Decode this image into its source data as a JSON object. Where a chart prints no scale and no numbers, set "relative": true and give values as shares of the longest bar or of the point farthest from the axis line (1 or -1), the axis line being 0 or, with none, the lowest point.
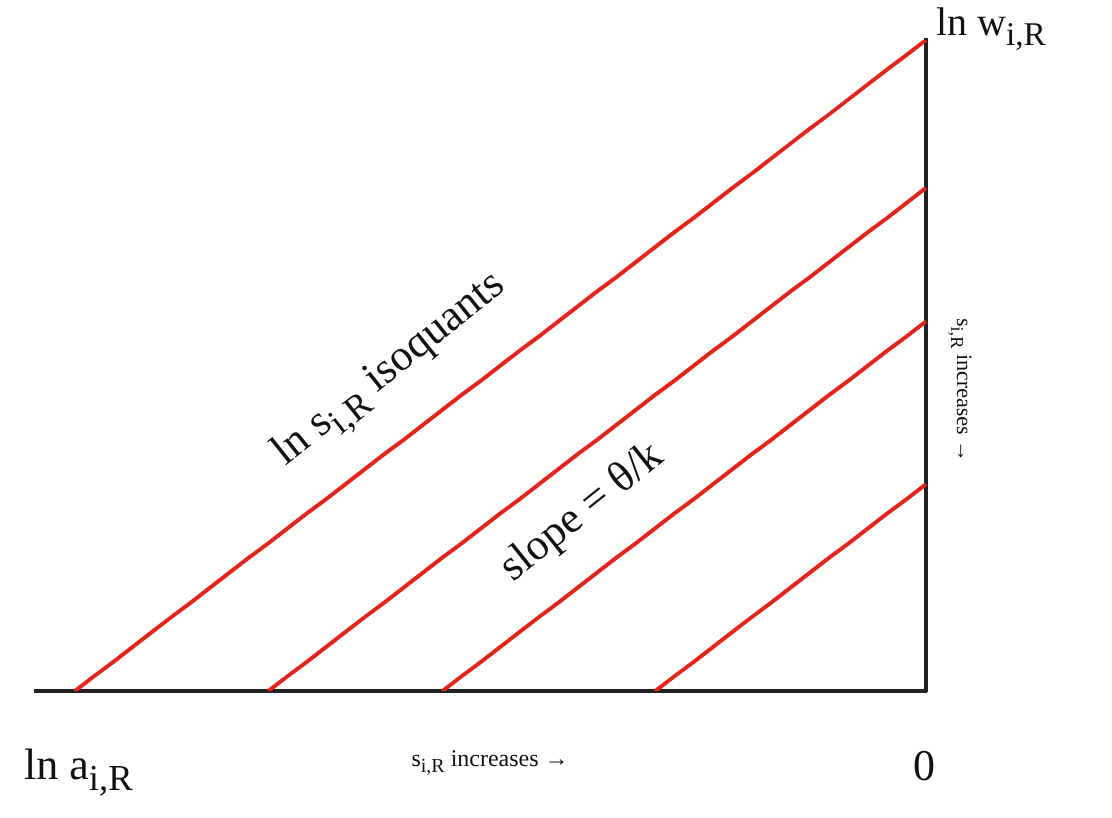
{
  "chart_data": {
    "type": "line",
    "relative": true,
    "grid": false,
    "legend": false,
    "marker": "none",
    "line_style": "solid",
    "categories": [
      null,
      null,
      null,
      null,
      null,
      null,
      null,
      null,
      null,
      null,
      null,
      null,
      null,
      null,
      null,
      null,
      null,
      null,
      null,
      null,
      null,
      null,
      null,
      null,
      null,
      null,
      null,
      null,
      null,
      null,
      null,
      null,
      null,
      null,
      null,
      null,
      null,
      null,
      null,
      null,
      null,
      null,
      null,
      null,
      null,
      null,
      null
    ],
    "series": [
      {
        "color": "#e3241d",
        "values": [
          null,
          null,
          0,
          0.023,
          0.045,
          0.068,
          0.091,
          0.114,
          0.136,
          0.159,
          0.182,
          0.205,
          0.227,
          0.25,
          0.273,
          0.295,
          0.318,
          0.341,
          0.364,
          0.386,
          0.409,
          0.432,
          0.455,
          0.477,
          0.5,
          0.523,
          0.545,
          0.568,
          0.591,
          0.614,
          0.636,
          0.659,
          0.682,
          0.705,
          0.727,
          0.75,
          0.773,
          0.795,
          0.818,
          0.841,
          0.864,
          0.886,
          0.909,
          0.932,
          0.955,
          0.977,
          1
        ]
      },
      {
        "color": "#e3241d",
        "values": [
          null,
          null,
          null,
          null,
          null,
          null,
          null,
          null,
          null,
          null,
          null,
          null,
          0,
          0.023,
          0.045,
          0.068,
          0.091,
          0.114,
          0.136,
          0.159,
          0.182,
          0.205,
          0.227,
          0.25,
          0.273,
          0.295,
          0.318,
          0.341,
          0.364,
          0.386,
          0.409,
          0.432,
          0.455,
          0.477,
          0.5,
          0.523,
          0.545,
          0.568,
          0.591,
          0.614,
          0.636,
          0.659,
          0.682,
          0.705,
          0.727,
          0.75,
          0.773
        ]
      },
      {
        "color": "#e3241d",
        "values": [
          null,
          null,
          null,
          null,
          null,
          null,
          null,
          null,
          null,
          null,
          null,
          null,
          null,
          null,
          null,
          null,
          null,
          null,
          null,
          null,
          null,
          0,
          0.023,
          0.045,
          0.068,
          0.091,
          0.114,
          0.136,
          0.159,
          0.182,
          0.205,
          0.227,
          0.25,
          0.273,
          0.295,
          0.318,
          0.341,
          0.364,
          0.386,
          0.409,
          0.432,
          0.455,
          0.477,
          0.5,
          0.523,
          0.545,
          0.568
        ]
      },
      {
        "color": "#e3241d",
        "values": [
          null,
          null,
          null,
          null,
          null,
          null,
          null,
          null,
          null,
          null,
          null,
          null,
          null,
          null,
          null,
          null,
          null,
          null,
          null,
          null,
          null,
          null,
          null,
          null,
          null,
          null,
          null,
          null,
          null,
          null,
          null,
          null,
          0,
          0.023,
          0.045,
          0.068,
          0.091,
          0.114,
          0.136,
          0.159,
          0.182,
          0.205,
          0.227,
          0.25,
          0.273,
          0.295,
          0.318
        ]
      }
    ],
    "annotations": [
      "ln s$_{i,R}$ isoquants",
      "slope = θ/k",
      "ln a$_{i,R}$",
      "s$_{i,R}$ increases →",
      "0",
      "ln w$_{i,R}$",
      "s$_{i,R}$ increases →"
    ]
  }
}
